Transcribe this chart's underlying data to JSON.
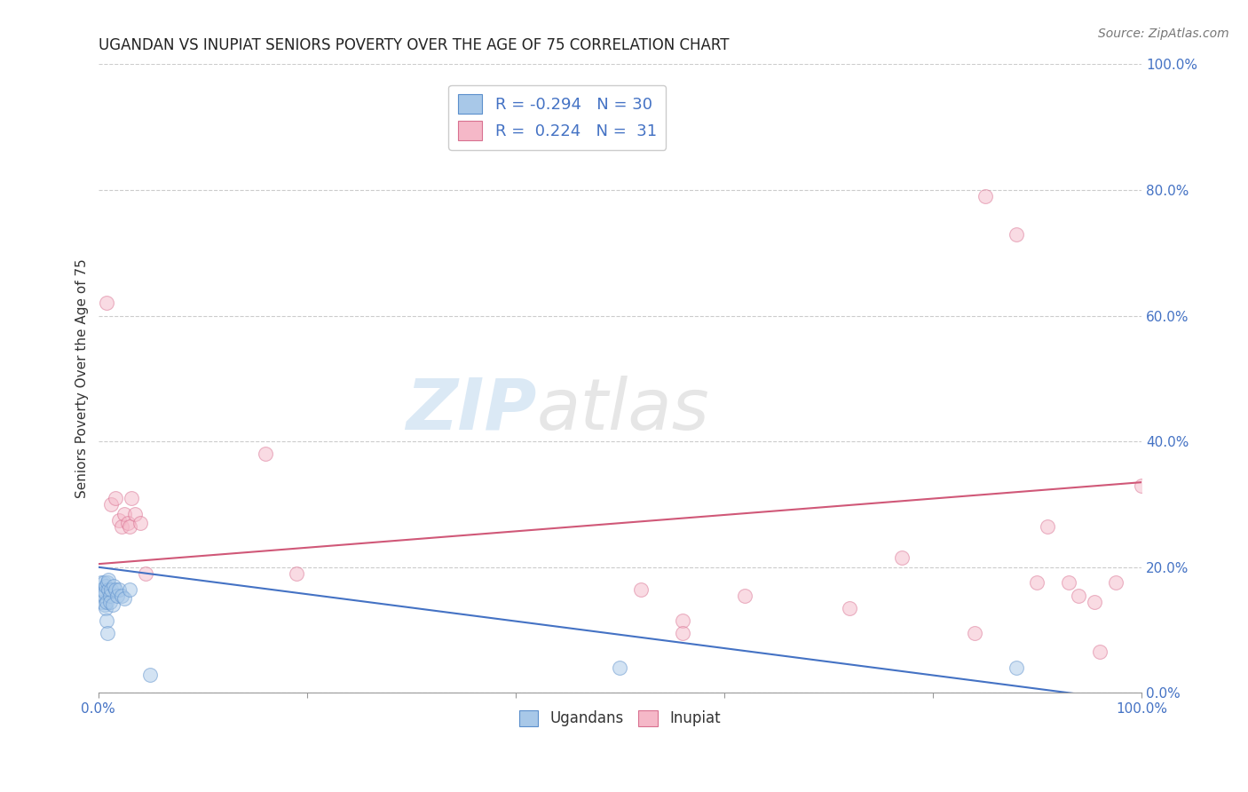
{
  "title": "UGANDAN VS INUPIAT SENIORS POVERTY OVER THE AGE OF 75 CORRELATION CHART",
  "source": "Source: ZipAtlas.com",
  "ylabel": "Seniors Poverty Over the Age of 75",
  "watermark_zip": "ZIP",
  "watermark_atlas": "atlas",
  "legend_blue_r": "-0.294",
  "legend_blue_n": "30",
  "legend_pink_r": "0.224",
  "legend_pink_n": "31",
  "xmin": 0.0,
  "xmax": 1.0,
  "ymin": 0.0,
  "ymax": 1.0,
  "ytick_vals": [
    0.0,
    0.2,
    0.4,
    0.6,
    0.8,
    1.0
  ],
  "ytick_labels_right": [
    "0.0%",
    "20.0%",
    "40.0%",
    "60.0%",
    "80.0%",
    "100.0%"
  ],
  "xtick_vals": [
    0.0,
    0.2,
    0.4,
    0.6,
    0.8,
    1.0
  ],
  "xtick_label_left": "0.0%",
  "xtick_label_right": "100.0%",
  "blue_color": "#a8c8e8",
  "blue_edge_color": "#5b8fcc",
  "blue_line_color": "#4472c4",
  "pink_color": "#f5b8c8",
  "pink_edge_color": "#d87090",
  "pink_line_color": "#d05878",
  "background_color": "#ffffff",
  "grid_color": "#cccccc",
  "tick_label_color": "#4472c4",
  "blue_x": [
    0.002,
    0.003,
    0.004,
    0.004,
    0.005,
    0.005,
    0.006,
    0.006,
    0.007,
    0.007,
    0.008,
    0.008,
    0.009,
    0.009,
    0.01,
    0.01,
    0.011,
    0.011,
    0.012,
    0.014,
    0.015,
    0.016,
    0.018,
    0.02,
    0.022,
    0.025,
    0.03,
    0.05,
    0.5,
    0.88
  ],
  "blue_y": [
    0.16,
    0.175,
    0.165,
    0.145,
    0.155,
    0.175,
    0.14,
    0.16,
    0.135,
    0.17,
    0.145,
    0.115,
    0.095,
    0.175,
    0.165,
    0.18,
    0.155,
    0.145,
    0.165,
    0.14,
    0.17,
    0.165,
    0.155,
    0.165,
    0.155,
    0.15,
    0.165,
    0.028,
    0.04,
    0.04
  ],
  "pink_x": [
    0.008,
    0.012,
    0.016,
    0.02,
    0.022,
    0.025,
    0.028,
    0.03,
    0.032,
    0.035,
    0.04,
    0.045,
    0.16,
    0.19,
    0.52,
    0.56,
    0.56,
    0.62,
    0.72,
    0.77,
    0.84,
    0.85,
    0.88,
    0.9,
    0.91,
    0.93,
    0.94,
    0.955,
    0.96,
    0.975,
    1.0
  ],
  "pink_y": [
    0.62,
    0.3,
    0.31,
    0.275,
    0.265,
    0.285,
    0.27,
    0.265,
    0.31,
    0.285,
    0.27,
    0.19,
    0.38,
    0.19,
    0.165,
    0.115,
    0.095,
    0.155,
    0.135,
    0.215,
    0.095,
    0.79,
    0.73,
    0.175,
    0.265,
    0.175,
    0.155,
    0.145,
    0.065,
    0.175,
    0.33
  ],
  "blue_line_y_start": 0.2,
  "blue_line_y_end": -0.015,
  "pink_line_y_start": 0.205,
  "pink_line_y_end": 0.335,
  "title_fontsize": 12,
  "source_fontsize": 10,
  "ylabel_fontsize": 11,
  "tick_fontsize": 11,
  "legend_fontsize": 13,
  "marker_size": 130,
  "marker_alpha": 0.5
}
